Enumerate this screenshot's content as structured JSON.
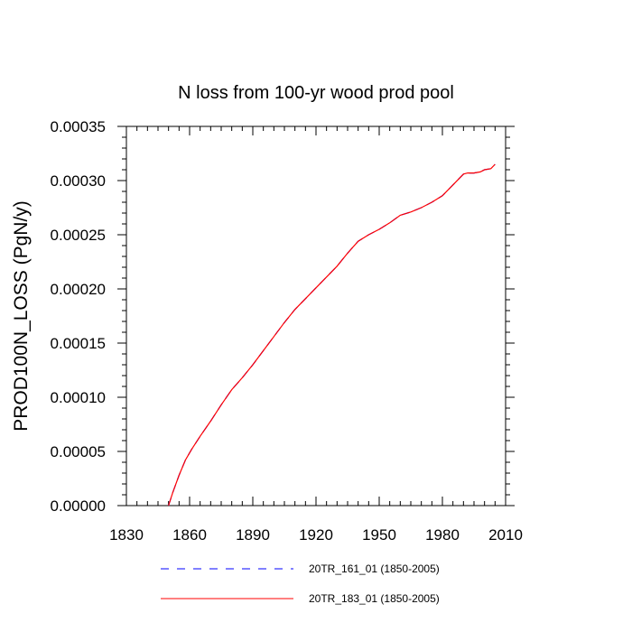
{
  "chart_data": {
    "type": "line",
    "title": "N loss from 100-yr wood prod pool",
    "xlabel": "",
    "ylabel": "PROD100N_LOSS  (PgN/y)",
    "xlim": [
      1830,
      2010
    ],
    "ylim": [
      0,
      0.00035
    ],
    "xticks": [
      1830,
      1860,
      1890,
      1920,
      1950,
      1980,
      2010
    ],
    "yticks": [
      "0.00000",
      "0.00005",
      "0.00010",
      "0.00015",
      "0.00020",
      "0.00025",
      "0.00030",
      "0.00035"
    ],
    "legend_position": "bottom",
    "series": [
      {
        "name": "20TR_161_01 (1850-2005)",
        "color": "#0000ff",
        "style": "dashed",
        "x": [
          1850,
          1852,
          1855,
          1858,
          1861,
          1865,
          1870,
          1875,
          1880,
          1885,
          1890,
          1895,
          1900,
          1905,
          1910,
          1915,
          1920,
          1925,
          1930,
          1935,
          1940,
          1945,
          1950,
          1955,
          1960,
          1965,
          1970,
          1975,
          1980,
          1985,
          1990,
          1992,
          1995,
          1998,
          2000,
          2003,
          2005
        ],
        "y": [
          0.0,
          1.2e-05,
          2.8e-05,
          4.2e-05,
          5.2e-05,
          6.4e-05,
          7.8e-05,
          9.3e-05,
          0.000107,
          0.000118,
          0.00013,
          0.000143,
          0.000156,
          0.000169,
          0.000181,
          0.000191,
          0.000201,
          0.000211,
          0.000221,
          0.000233,
          0.000244,
          0.00025,
          0.000255,
          0.000261,
          0.000268,
          0.000271,
          0.000275,
          0.00028,
          0.000286,
          0.000296,
          0.000306,
          0.000307,
          0.000307,
          0.000308,
          0.00031,
          0.000311,
          0.000315
        ]
      },
      {
        "name": "20TR_183_01 (1850-2005)",
        "color": "#ff0000",
        "style": "solid",
        "x": [
          1850,
          1852,
          1855,
          1858,
          1861,
          1865,
          1870,
          1875,
          1880,
          1885,
          1890,
          1895,
          1900,
          1905,
          1910,
          1915,
          1920,
          1925,
          1930,
          1935,
          1940,
          1945,
          1950,
          1955,
          1960,
          1965,
          1970,
          1975,
          1980,
          1985,
          1990,
          1992,
          1995,
          1998,
          2000,
          2003,
          2005
        ],
        "y": [
          0.0,
          1.2e-05,
          2.8e-05,
          4.2e-05,
          5.2e-05,
          6.4e-05,
          7.8e-05,
          9.3e-05,
          0.000107,
          0.000118,
          0.00013,
          0.000143,
          0.000156,
          0.000169,
          0.000181,
          0.000191,
          0.000201,
          0.000211,
          0.000221,
          0.000233,
          0.000244,
          0.00025,
          0.000255,
          0.000261,
          0.000268,
          0.000271,
          0.000275,
          0.00028,
          0.000286,
          0.000296,
          0.000306,
          0.000307,
          0.000307,
          0.000308,
          0.00031,
          0.000311,
          0.000315
        ]
      }
    ]
  }
}
